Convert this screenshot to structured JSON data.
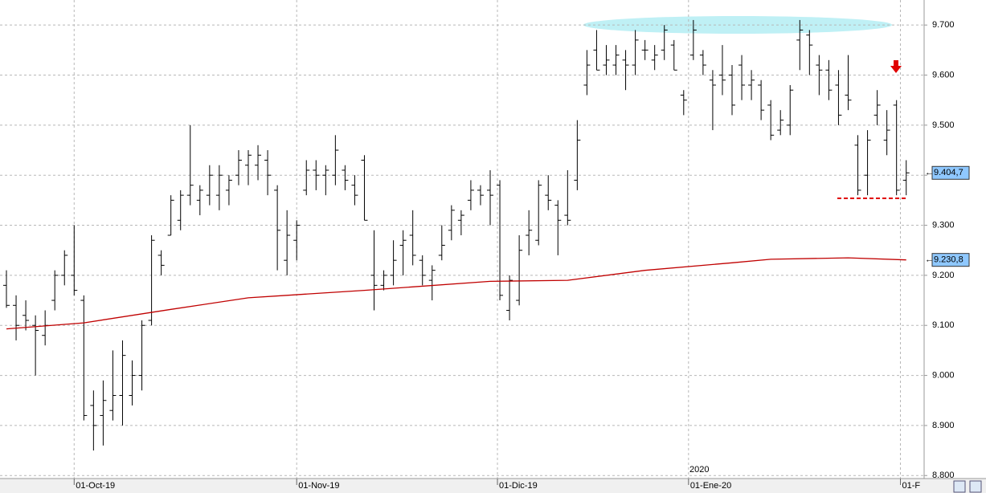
{
  "chart_data": {
    "type": "ohlc",
    "categories": [
      null,
      null,
      null,
      null,
      null,
      null,
      null,
      null,
      null,
      null,
      null,
      null,
      null,
      null,
      null,
      null,
      null,
      null,
      null,
      null,
      null,
      null,
      null,
      null,
      null,
      null,
      null,
      null,
      null,
      null,
      null,
      null,
      null,
      null,
      null,
      null,
      null,
      null,
      null,
      null,
      null,
      null,
      null,
      null,
      null,
      null,
      null,
      null,
      null,
      null,
      null,
      null,
      null,
      null,
      null,
      null,
      null,
      null,
      null,
      null,
      null,
      null,
      null,
      null,
      null,
      null,
      null,
      null,
      null,
      null,
      null,
      null,
      null,
      null,
      null,
      null,
      null,
      null,
      null,
      null,
      null,
      null,
      null,
      null,
      null,
      null,
      null,
      null,
      null,
      null,
      null,
      null,
      null,
      null
    ],
    "high": [
      9210,
      9160,
      9150,
      9120,
      9130,
      9210,
      9250,
      9300,
      9160,
      8970,
      8990,
      9050,
      9070,
      9030,
      9110,
      9280,
      9250,
      9360,
      9370,
      9500,
      9380,
      9420,
      9420,
      9400,
      9450,
      9450,
      9460,
      9450,
      9380,
      9330,
      9310,
      9430,
      9430,
      9420,
      9480,
      9420,
      9400,
      9440,
      9290,
      9210,
      9270,
      9290,
      9330,
      9240,
      9220,
      9300,
      9340,
      9330,
      9390,
      9380,
      9410,
      9390,
      9200,
      9280,
      9330,
      9390,
      9400,
      9350,
      9410,
      9510,
      9650,
      9690,
      9660,
      9660,
      9650,
      9690,
      9670,
      9660,
      9700,
      9670,
      9570,
      9710,
      9650,
      9610,
      9660,
      9620,
      9640,
      9610,
      9590,
      9550,
      9530,
      9580,
      9710,
      9690,
      9640,
      9630,
      9610,
      9640,
      9480,
      9490,
      9570,
      9530,
      9550,
      9430
    ],
    "low": [
      9135,
      9070,
      9090,
      9000,
      9060,
      9130,
      9180,
      9160,
      8910,
      8850,
      8860,
      8910,
      8900,
      8940,
      8970,
      9100,
      9200,
      9280,
      9290,
      9340,
      9320,
      9340,
      9330,
      9340,
      9380,
      9380,
      9390,
      9360,
      9210,
      9200,
      9230,
      9360,
      9370,
      9360,
      9380,
      9370,
      9340,
      9310,
      9130,
      9170,
      9180,
      9200,
      9220,
      9180,
      9150,
      9230,
      9270,
      9280,
      9330,
      9340,
      9300,
      9150,
      9110,
      9140,
      9240,
      9260,
      9330,
      9240,
      9300,
      9370,
      9560,
      9610,
      9600,
      9600,
      9570,
      9600,
      9630,
      9610,
      9630,
      9610,
      9520,
      9630,
      9600,
      9490,
      9560,
      9520,
      9550,
      9550,
      9510,
      9470,
      9480,
      9480,
      9610,
      9600,
      9560,
      9550,
      9500,
      9530,
      9360,
      9360,
      9500,
      9440,
      9360,
      9360
    ],
    "open": [
      9180,
      9140,
      9120,
      9100,
      9080,
      9150,
      9200,
      9200,
      9150,
      8940,
      8920,
      8930,
      8960,
      8960,
      9000,
      9110,
      9240,
      9280,
      9310,
      9360,
      9350,
      9360,
      9360,
      9370,
      9400,
      9420,
      9420,
      9430,
      9370,
      9230,
      9270,
      9370,
      9410,
      9400,
      9400,
      9410,
      9380,
      9430,
      9200,
      9180,
      9200,
      9260,
      9280,
      9230,
      9190,
      9240,
      9290,
      9310,
      9350,
      9370,
      9370,
      9380,
      9130,
      9150,
      9280,
      9270,
      9360,
      9340,
      9320,
      9390,
      9580,
      9650,
      9620,
      9620,
      9630,
      9620,
      9650,
      9630,
      9650,
      9660,
      9560,
      9640,
      9640,
      9590,
      9600,
      9600,
      9620,
      9580,
      9580,
      9540,
      9490,
      9500,
      9670,
      9680,
      9620,
      9610,
      9580,
      9560,
      9460,
      9400,
      9520,
      9470,
      9540,
      9390
    ],
    "close": [
      9140,
      9100,
      9110,
      9090,
      9100,
      9200,
      9240,
      9170,
      8920,
      8900,
      8950,
      8960,
      9040,
      9000,
      9100,
      9270,
      9220,
      9350,
      9360,
      9380,
      9370,
      9400,
      9400,
      9390,
      9430,
      9440,
      9440,
      9400,
      9290,
      9280,
      9300,
      9410,
      9400,
      9410,
      9450,
      9390,
      9360,
      9310,
      9180,
      9200,
      9230,
      9270,
      9240,
      9200,
      9210,
      9260,
      9330,
      9320,
      9370,
      9360,
      9360,
      9160,
      9190,
      9250,
      9290,
      9380,
      9350,
      9310,
      9310,
      9470,
      9620,
      9610,
      9630,
      9640,
      9620,
      9670,
      9650,
      9640,
      9690,
      9610,
      9550,
      9690,
      9620,
      9580,
      9590,
      9540,
      9580,
      9590,
      9530,
      9480,
      9510,
      9570,
      9690,
      9660,
      9610,
      9570,
      9520,
      9550,
      9370,
      9470,
      9540,
      9490,
      9370,
      9404.7
    ],
    "ma": {
      "color": "#c00000",
      "x": [
        0,
        8,
        17,
        25,
        29,
        37,
        50,
        58,
        66,
        75,
        79,
        87,
        93
      ],
      "values": [
        9093,
        9105,
        9132,
        9155,
        9160,
        9170,
        9188,
        9190,
        9210,
        9225,
        9232,
        9235,
        9230.8
      ]
    },
    "price_labels": [
      {
        "value": 9404.7,
        "label": "9.404,7"
      },
      {
        "value": 9230.8,
        "label": "9.230,8"
      }
    ],
    "ylim": [
      8794,
      9750
    ],
    "yticks": [
      {
        "value": 8800,
        "label": "8.800"
      },
      {
        "value": 8900,
        "label": "8.900"
      },
      {
        "value": 9000,
        "label": "9.000"
      },
      {
        "value": 9100,
        "label": "9.100"
      },
      {
        "value": 9200,
        "label": "9.200"
      },
      {
        "value": 9300,
        "label": "9.300"
      },
      {
        "value": 9400,
        "label": "9.400"
      },
      {
        "value": 9500,
        "label": "9.500"
      },
      {
        "value": 9600,
        "label": "9.600"
      },
      {
        "value": 9700,
        "label": "9.700"
      }
    ],
    "xticks": [
      {
        "value": 7,
        "label": "01-Oct-19"
      },
      {
        "value": 30,
        "label": "01-Nov-19"
      },
      {
        "value": 50.75,
        "label": "01-Dic-19"
      },
      {
        "value": 70.5,
        "label": "01-Ene-20"
      },
      {
        "value": 92.4,
        "label": "01-F"
      }
    ],
    "year_label": "2020",
    "grid": true
  }
}
